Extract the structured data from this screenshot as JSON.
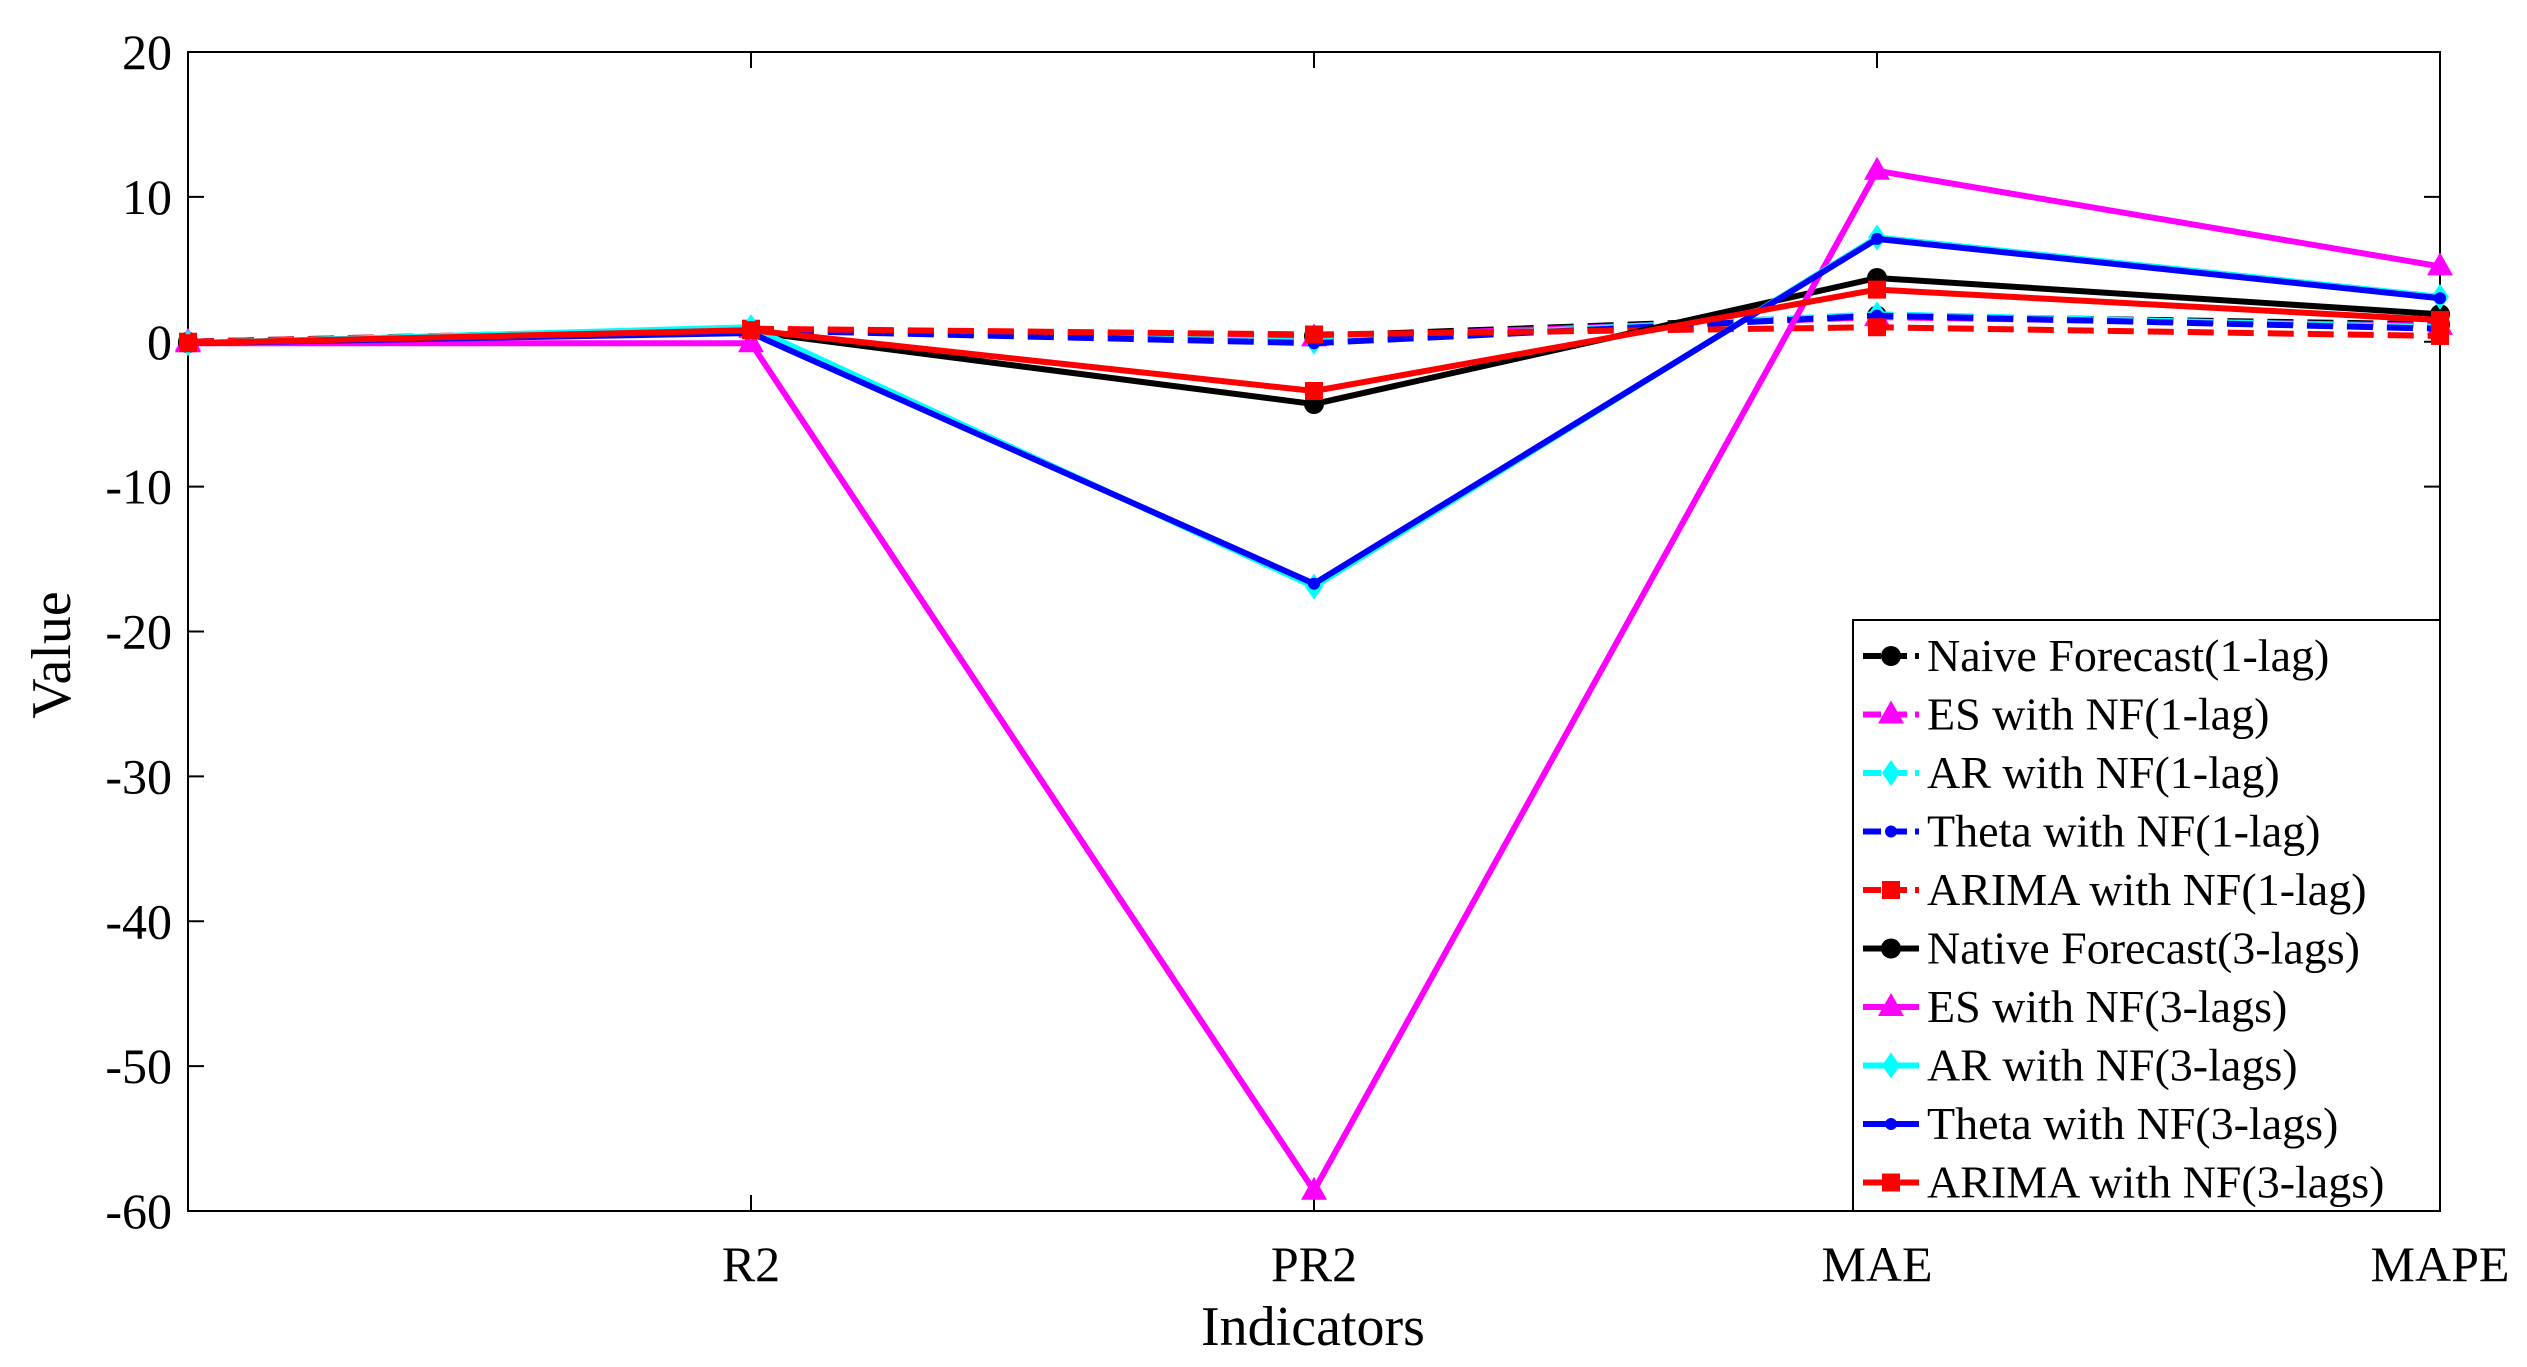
{
  "chart_data": {
    "type": "line",
    "title": "",
    "xlabel": "Indicators",
    "ylabel": "Value",
    "categories": [
      "",
      "R2",
      "PR2",
      "MAE",
      "MAPE"
    ],
    "ylim": [
      -60,
      20
    ],
    "yticks": [
      20,
      10,
      0,
      -10,
      -20,
      -30,
      -40,
      -50,
      -60
    ],
    "grid": false,
    "legend_position": "bottom-right",
    "series": [
      {
        "name": "Naive Forecast(1-lag)",
        "values": [
          0,
          0.8,
          0.4,
          1.8,
          1.2
        ],
        "color": "#000000",
        "dash": "dashed",
        "marker": "circle"
      },
      {
        "name": "ES with NF(1-lag)",
        "values": [
          0,
          0.9,
          0.3,
          1.7,
          1.1
        ],
        "color": "#ff00ff",
        "dash": "dashed",
        "marker": "triangle"
      },
      {
        "name": "AR with NF(1-lag)",
        "values": [
          0,
          0.9,
          0.0,
          1.9,
          1.0
        ],
        "color": "#00ffff",
        "dash": "dashed",
        "marker": "diamond"
      },
      {
        "name": "Theta with NF(1-lag)",
        "values": [
          0,
          0.8,
          -0.1,
          1.8,
          0.9
        ],
        "color": "#0000ff",
        "dash": "dashed",
        "marker": "point"
      },
      {
        "name": "ARIMA with NF(1-lag)",
        "values": [
          0,
          0.9,
          0.5,
          1.0,
          0.4
        ],
        "color": "#ff0000",
        "dash": "dashed",
        "marker": "square"
      },
      {
        "name": "Native Forecast(3-lags)",
        "values": [
          -0.1,
          0.7,
          -4.3,
          4.4,
          1.9
        ],
        "color": "#000000",
        "dash": "solid",
        "marker": "circle"
      },
      {
        "name": "ES with NF(3-lags)",
        "values": [
          -0.1,
          -0.1,
          -58.6,
          11.8,
          5.2
        ],
        "color": "#ff00ff",
        "dash": "solid",
        "marker": "triangle"
      },
      {
        "name": "AR with NF(3-lags)",
        "values": [
          -0.1,
          1.0,
          -16.9,
          7.2,
          3.1
        ],
        "color": "#00ffff",
        "dash": "solid",
        "marker": "diamond"
      },
      {
        "name": "Theta with NF(3-lags)",
        "values": [
          -0.1,
          0.6,
          -16.7,
          7.1,
          3.0
        ],
        "color": "#0000ff",
        "dash": "solid",
        "marker": "point"
      },
      {
        "name": "ARIMA with NF(3-lags)",
        "values": [
          -0.1,
          0.8,
          -3.4,
          3.6,
          1.5
        ],
        "color": "#ff0000",
        "dash": "solid",
        "marker": "square"
      }
    ]
  }
}
